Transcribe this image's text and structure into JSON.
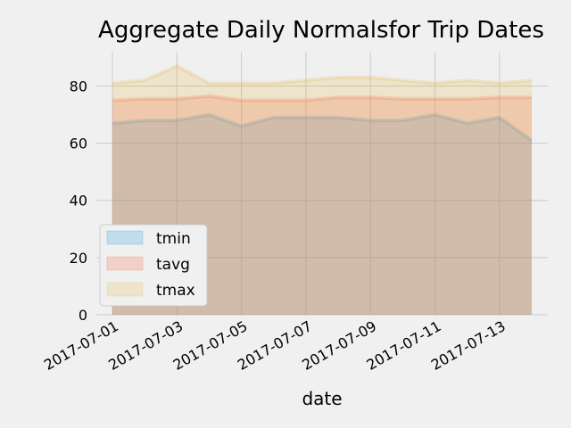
{
  "chart_data": {
    "type": "area",
    "title": "Aggregate Daily Normalsfor Trip Dates",
    "xlabel": "date",
    "ylabel": "",
    "ylim": [
      0,
      92
    ],
    "yticks": [
      0,
      20,
      40,
      60,
      80
    ],
    "x": [
      "2017-07-01",
      "2017-07-02",
      "2017-07-03",
      "2017-07-04",
      "2017-07-05",
      "2017-07-06",
      "2017-07-07",
      "2017-07-08",
      "2017-07-09",
      "2017-07-10",
      "2017-07-11",
      "2017-07-12",
      "2017-07-13",
      "2017-07-14"
    ],
    "xtick_labels": [
      "2017-07-01",
      "2017-07-03",
      "2017-07-05",
      "2017-07-07",
      "2017-07-09",
      "2017-07-11",
      "2017-07-13"
    ],
    "grid": true,
    "stacked": false,
    "legend_position": "lower-left",
    "series": [
      {
        "name": "tmin",
        "color": "#008fd5",
        "values": [
          67,
          68,
          68,
          70,
          66,
          69,
          69,
          69,
          68,
          68,
          70,
          67,
          69,
          61
        ]
      },
      {
        "name": "tavg",
        "color": "#fc4f30",
        "values": [
          75,
          75.5,
          75.5,
          76.5,
          75,
          75,
          75,
          76,
          76,
          75.5,
          75.5,
          75.5,
          76,
          76
        ]
      },
      {
        "name": "tmax",
        "color": "#e5ae38",
        "values": [
          81,
          82,
          87,
          81,
          81,
          81,
          82,
          83,
          83,
          82,
          81,
          82,
          81,
          82
        ]
      }
    ]
  }
}
